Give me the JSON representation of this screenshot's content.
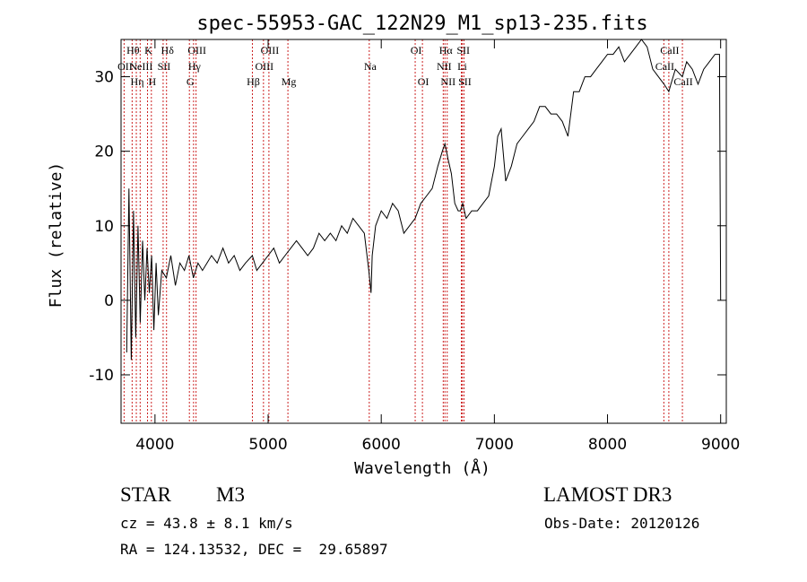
{
  "chart_data": {
    "type": "line",
    "title": "spec-55953-GAC_122N29_M1_sp13-235.fits",
    "xlabel": "Wavelength (Å)",
    "ylabel": "Flux (relative)",
    "xlim": [
      3700,
      9050
    ],
    "ylim": [
      -16.5,
      35
    ],
    "x_ticks": [
      4000,
      5000,
      6000,
      7000,
      8000,
      9000
    ],
    "y_ticks": [
      -10,
      0,
      10,
      20,
      30
    ],
    "grid": false,
    "series": [
      {
        "name": "flux",
        "x": [
          3750,
          3770,
          3790,
          3810,
          3830,
          3850,
          3870,
          3890,
          3910,
          3930,
          3950,
          3970,
          3990,
          4010,
          4030,
          4060,
          4100,
          4140,
          4180,
          4220,
          4260,
          4300,
          4340,
          4380,
          4420,
          4460,
          4500,
          4550,
          4600,
          4650,
          4700,
          4750,
          4800,
          4860,
          4900,
          4950,
          5000,
          5050,
          5100,
          5150,
          5200,
          5250,
          5300,
          5350,
          5400,
          5450,
          5500,
          5550,
          5600,
          5650,
          5700,
          5750,
          5800,
          5850,
          5890,
          5910,
          5920,
          5950,
          6000,
          6050,
          6100,
          6150,
          6200,
          6250,
          6300,
          6350,
          6400,
          6450,
          6500,
          6540,
          6563,
          6590,
          6620,
          6650,
          6680,
          6700,
          6720,
          6750,
          6800,
          6850,
          6900,
          6950,
          7000,
          7030,
          7060,
          7100,
          7150,
          7200,
          7250,
          7300,
          7350,
          7400,
          7450,
          7500,
          7550,
          7600,
          7650,
          7700,
          7750,
          7800,
          7850,
          7900,
          7950,
          8000,
          8050,
          8100,
          8150,
          8200,
          8250,
          8300,
          8350,
          8400,
          8450,
          8500,
          8542,
          8560,
          8600,
          8662,
          8700,
          8750,
          8800,
          8850,
          8900,
          8950,
          8990,
          9000
        ],
        "y": [
          -7,
          15,
          -8,
          12,
          -5,
          10,
          -3,
          8,
          0,
          7,
          1,
          6,
          -4,
          5,
          -2,
          4,
          3,
          6,
          2,
          5,
          4,
          6,
          3,
          5,
          4,
          5,
          6,
          5,
          7,
          5,
          6,
          4,
          5,
          6,
          4,
          5,
          6,
          7,
          5,
          6,
          7,
          8,
          7,
          6,
          7,
          9,
          8,
          9,
          8,
          10,
          9,
          11,
          10,
          9,
          4,
          1,
          6,
          10,
          12,
          11,
          13,
          12,
          9,
          10,
          11,
          13,
          14,
          15,
          18,
          20,
          21,
          19,
          17,
          13,
          12,
          12,
          13,
          11,
          12,
          12,
          13,
          14,
          18,
          22,
          23,
          16,
          18,
          21,
          22,
          23,
          24,
          26,
          26,
          25,
          25,
          24,
          22,
          28,
          28,
          30,
          30,
          31,
          32,
          33,
          33,
          34,
          32,
          33,
          34,
          36,
          34,
          31,
          30,
          29,
          28,
          29,
          31,
          30,
          32,
          31,
          29,
          31,
          32,
          33,
          33,
          0
        ],
        "color": "#000000"
      }
    ],
    "line_markers": [
      {
        "wavelength": 3798,
        "label": "Hθ",
        "row": 0
      },
      {
        "wavelength": 3727,
        "label": "OII",
        "row": 1
      },
      {
        "wavelength": 3835,
        "label": "Hη",
        "row": 2
      },
      {
        "wavelength": 3869,
        "label": "NeIII",
        "row": 1
      },
      {
        "wavelength": 3934,
        "label": "K",
        "row": 0
      },
      {
        "wavelength": 3968,
        "label": "H",
        "row": 2
      },
      {
        "wavelength": 4072,
        "label": "SII",
        "row": 1
      },
      {
        "wavelength": 4102,
        "label": "Hδ",
        "row": 0
      },
      {
        "wavelength": 4304,
        "label": "G",
        "row": 2
      },
      {
        "wavelength": 4341,
        "label": "Hγ",
        "row": 1
      },
      {
        "wavelength": 4363,
        "label": "OIII",
        "row": 0
      },
      {
        "wavelength": 4861,
        "label": "Hβ",
        "row": 2
      },
      {
        "wavelength": 4959,
        "label": "OIII",
        "row": 1
      },
      {
        "wavelength": 5007,
        "label": "OIII",
        "row": 0
      },
      {
        "wavelength": 5175,
        "label": "Mg",
        "row": 2
      },
      {
        "wavelength": 5894,
        "label": "Na",
        "row": 1
      },
      {
        "wavelength": 6300,
        "label": "OI",
        "row": 0
      },
      {
        "wavelength": 6364,
        "label": "OI",
        "row": 2
      },
      {
        "wavelength": 6548,
        "label": "NII",
        "row": 1
      },
      {
        "wavelength": 6563,
        "label": "Hα",
        "row": 0
      },
      {
        "wavelength": 6583,
        "label": "NII",
        "row": 2
      },
      {
        "wavelength": 6708,
        "label": "Li",
        "row": 1
      },
      {
        "wavelength": 6717,
        "label": "SII",
        "row": 0
      },
      {
        "wavelength": 6731,
        "label": "SII",
        "row": 2
      },
      {
        "wavelength": 8498,
        "label": "CaII",
        "row": 1
      },
      {
        "wavelength": 8542,
        "label": "CaII",
        "row": 0
      },
      {
        "wavelength": 8662,
        "label": "CaII",
        "row": 2
      }
    ]
  },
  "info": {
    "object_class": "STAR",
    "subclass": "M3",
    "survey": "LAMOST DR3",
    "redshift": "cz = 43.8 ± 8.1 km/s",
    "obs_date": "Obs-Date: 20120126",
    "coords": "RA = 124.13532, DEC =  29.65897"
  },
  "colors": {
    "marker_line": "#cc2222",
    "spectrum": "#000000"
  }
}
